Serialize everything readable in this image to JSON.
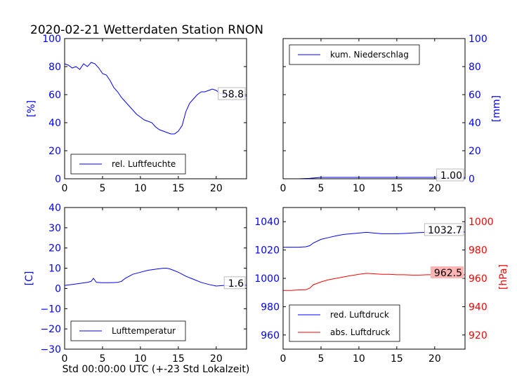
{
  "title": "2020-02-21 Wetterdaten Station RNON",
  "colors": {
    "blue": "#0000ff",
    "red": "#ff0000",
    "black": "#000000",
    "red_box": "#ffb4b4"
  },
  "chart_data": [
    {
      "id": "humidity",
      "type": "line",
      "ylabel": "[%]",
      "xlim": [
        0,
        24
      ],
      "ylim": [
        0,
        100
      ],
      "xticks": [
        0,
        5,
        10,
        15,
        20
      ],
      "yticks": [
        0,
        20,
        40,
        60,
        80,
        100
      ],
      "legend": "rel. Luftfeuchte",
      "legend_position": "bottom-left",
      "annotation": "58.8",
      "series": [
        {
          "color": "#0000ff",
          "x": [
            0,
            0.5,
            1,
            1.5,
            2,
            2.5,
            3,
            3.5,
            4,
            4.5,
            5,
            5.5,
            6,
            6.5,
            7,
            7.5,
            8,
            8.5,
            9,
            9.5,
            10,
            10.5,
            11,
            11.5,
            12,
            12.5,
            13,
            13.5,
            14,
            14.5,
            15,
            15.5,
            16,
            16.5,
            17,
            17.5,
            18,
            18.5,
            19,
            19.5,
            20,
            20.5,
            21,
            21.5,
            22,
            22.5,
            23,
            23.5,
            24
          ],
          "y": [
            82,
            81,
            79,
            80,
            78,
            82,
            80,
            83,
            82,
            79,
            75,
            74,
            70,
            65,
            62,
            58,
            55,
            52,
            49,
            46,
            44,
            42,
            41,
            40,
            37,
            35,
            34,
            33,
            32,
            32,
            34,
            38,
            48,
            54,
            57,
            60,
            62,
            62,
            63,
            64,
            63,
            61,
            60,
            60,
            59,
            59,
            59,
            59,
            59
          ]
        }
      ]
    },
    {
      "id": "precipitation",
      "type": "line",
      "ylabel": "[mm]",
      "xlim": [
        0,
        24
      ],
      "ylim": [
        0,
        100
      ],
      "xticks": [
        0,
        5,
        10,
        15,
        20
      ],
      "yticks": [
        0,
        20,
        40,
        60,
        80,
        100
      ],
      "legend": "kum. Niederschlag",
      "legend_position": "top-left",
      "annotation": "1.00",
      "series": [
        {
          "color": "#0000ff",
          "x": [
            0,
            2,
            3.5,
            4.5,
            5,
            10,
            15,
            20,
            24
          ],
          "y": [
            0,
            0,
            0.3,
            0.8,
            1,
            1,
            1,
            1,
            1
          ]
        }
      ]
    },
    {
      "id": "temperature",
      "type": "line",
      "ylabel": "[C]",
      "xlabel": "Std 00:00:00 UTC (+-23 Std Lokalzeit)",
      "xlim": [
        0,
        24
      ],
      "ylim": [
        -30,
        40
      ],
      "xticks": [
        0,
        5,
        10,
        15,
        20
      ],
      "yticks": [
        -30,
        -20,
        -10,
        0,
        10,
        20,
        30,
        40
      ],
      "legend": "Lufttemperatur",
      "legend_position": "bottom-left",
      "annotation": "1.6",
      "series": [
        {
          "color": "#0000ff",
          "x": [
            0,
            1,
            2,
            3,
            3.5,
            3.8,
            4.2,
            5,
            6,
            7,
            7.5,
            8,
            9,
            10,
            11,
            12,
            13,
            13.5,
            14,
            15,
            16,
            17,
            18,
            19,
            20,
            21,
            22,
            23,
            24
          ],
          "y": [
            1.5,
            2,
            2.5,
            3,
            3.5,
            5,
            3,
            2.8,
            2.8,
            3,
            3.5,
            5,
            7,
            8,
            9,
            9.5,
            10,
            10,
            9.5,
            8,
            6,
            4.5,
            3,
            2,
            1.2,
            1.5,
            1.2,
            1.6,
            1.6
          ]
        }
      ]
    },
    {
      "id": "pressure",
      "type": "line",
      "ylabel": "[hPa]",
      "xlim": [
        0,
        24
      ],
      "ylim": [
        950,
        1050
      ],
      "xticks": [
        0,
        5,
        10,
        15,
        20
      ],
      "yticks": [
        960,
        980,
        1000,
        1020,
        1040
      ],
      "y2lim": [
        910,
        1010
      ],
      "y2ticks": [
        920,
        940,
        960,
        980,
        1000
      ],
      "legend_position": "bottom-left",
      "series": [
        {
          "name": "red. Luftdruck",
          "color": "#0000ff",
          "axis": "left",
          "annotation": "1032.7",
          "x": [
            0,
            1,
            2,
            3,
            3.5,
            4,
            5,
            6,
            7,
            8,
            9,
            10,
            11,
            12,
            13,
            14,
            15,
            16,
            17,
            18,
            19,
            20,
            21,
            22,
            23,
            24
          ],
          "y": [
            1022,
            1022,
            1022,
            1022.3,
            1023,
            1025,
            1027.5,
            1028.8,
            1030,
            1031,
            1031.5,
            1032,
            1032.5,
            1032,
            1031.5,
            1031.5,
            1031.5,
            1031.7,
            1032,
            1032.3,
            1032.5,
            1032.7,
            1032.7,
            1032.5,
            1032.5,
            1032.7
          ]
        },
        {
          "name": "abs. Luftdruck",
          "color": "#ff0000",
          "axis": "right",
          "annotation": "962.5",
          "x": [
            0,
            1,
            2,
            3,
            3.5,
            4,
            5,
            6,
            7,
            8,
            9,
            10,
            11,
            12,
            13,
            14,
            15,
            16,
            17,
            18,
            19,
            20,
            21,
            22,
            23,
            24
          ],
          "y": [
            951.5,
            951.5,
            951.8,
            952,
            953,
            955.5,
            957.5,
            959,
            960,
            961,
            962,
            962.8,
            963.5,
            963.2,
            962.8,
            962.8,
            962.5,
            962.5,
            962.3,
            962.3,
            962.5,
            962.5,
            962.3,
            962.2,
            962.4,
            962.5
          ]
        }
      ]
    }
  ]
}
